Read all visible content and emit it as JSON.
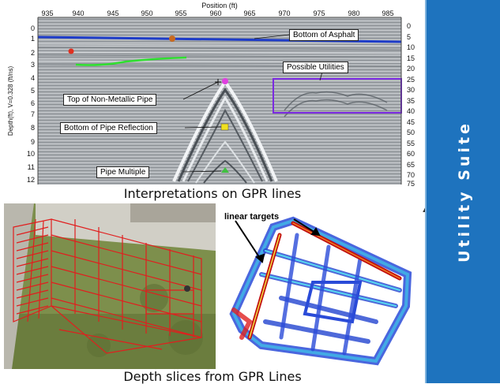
{
  "sidebar": {
    "title": "Utility Suite",
    "color": "#1e73be"
  },
  "gpr": {
    "position_label": "Position (ft)",
    "depth_label": "Depth(ft), V=0.328 (ft/ns)",
    "top_ticks": [
      "935",
      "940",
      "945",
      "950",
      "955",
      "960",
      "965",
      "970",
      "975",
      "980",
      "985"
    ],
    "left_ticks": [
      "0",
      "1",
      "2",
      "3",
      "4",
      "5",
      "6",
      "7",
      "8",
      "9",
      "10",
      "11",
      "12"
    ],
    "right_ticks": [
      "0",
      "5",
      "10",
      "15",
      "20",
      "25",
      "30",
      "35",
      "40",
      "45",
      "50",
      "55",
      "60",
      "65",
      "70",
      "75"
    ],
    "annotations": {
      "bottom_of_asphalt": "Bottom of Asphalt",
      "possible_utilities": "Possible Utilities",
      "top_of_pipe": "Top of Non-Metallic Pipe",
      "bottom_of_pipe": "Bottom of Pipe Reflection",
      "pipe_multiple": "Pipe Multiple"
    },
    "caption": "Interpretations on GPR lines"
  },
  "slices": {
    "linear_targets": "linear targets",
    "caption": "Depth slices from GPR Lines"
  }
}
